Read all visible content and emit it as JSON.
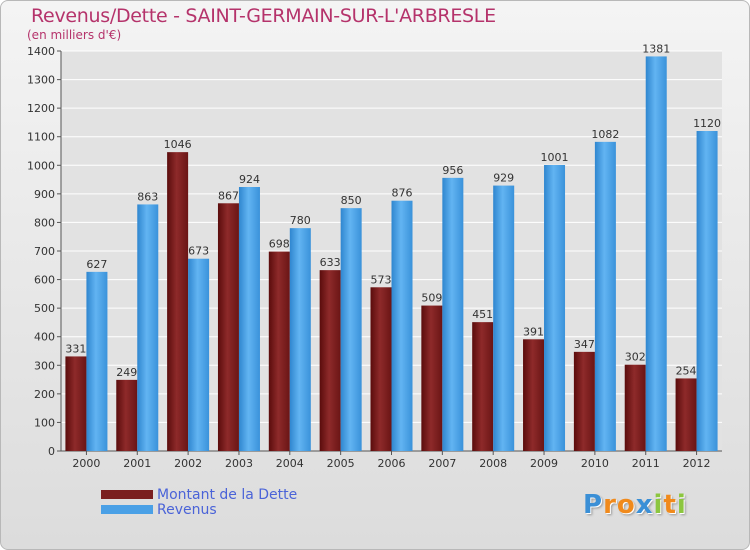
{
  "chart_data": {
    "type": "bar",
    "title": "Revenus/Dette - SAINT-GERMAIN-SUR-L'ARBRESLE",
    "subtitle": "(en milliers d'€)",
    "categories": [
      "2000",
      "2001",
      "2002",
      "2003",
      "2004",
      "2005",
      "2006",
      "2007",
      "2008",
      "2009",
      "2010",
      "2011",
      "2012"
    ],
    "series": [
      {
        "name": "Montant de la Dette",
        "color": "#7a1f1f",
        "values": [
          331,
          249,
          1046,
          867,
          698,
          633,
          573,
          509,
          451,
          391,
          347,
          302,
          254
        ]
      },
      {
        "name": "Revenus",
        "color": "#4aa0e6",
        "values": [
          627,
          863,
          673,
          924,
          780,
          850,
          876,
          956,
          929,
          1001,
          1082,
          1381,
          1120
        ]
      }
    ],
    "ylim": [
      0,
      1400
    ],
    "ytick_step": 100,
    "grid": true,
    "legend_position": "bottom-left"
  },
  "branding": {
    "logo_letters": [
      "P",
      "r",
      "o",
      "x",
      "i",
      "t",
      "i"
    ],
    "logo_colors": [
      "#3a8fd6",
      "#f08a1c",
      "#f08a1c",
      "#3a8fd6",
      "#8cc63f",
      "#f08a1c",
      "#8cc63f"
    ]
  }
}
